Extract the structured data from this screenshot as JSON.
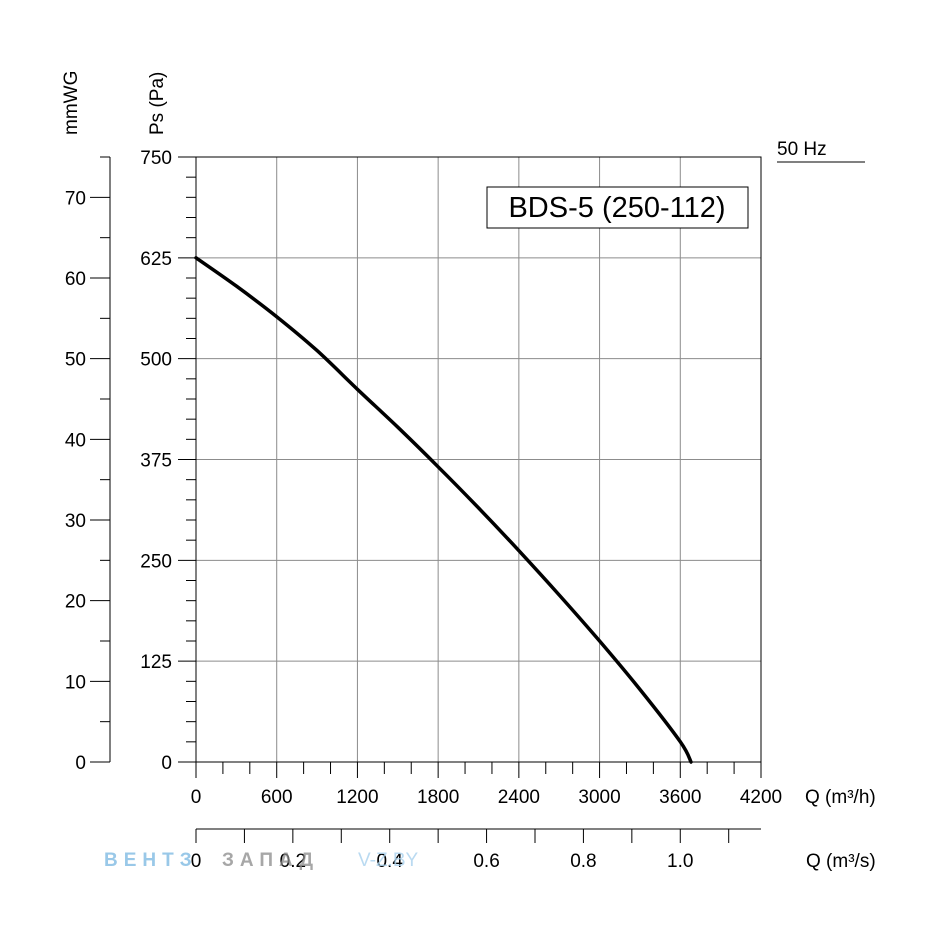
{
  "chart_data": {
    "type": "line",
    "title": "BDS-5 (250-112)",
    "frequency_label": "50 Hz",
    "xlabel": "Q (m³/h)",
    "ylabel": "Ps (Pa)",
    "secondary_ylabel": "mmWG",
    "secondary_xlabel": "Q (m³/s)",
    "xlim": [
      0,
      4200
    ],
    "ylim": [
      0,
      750
    ],
    "secondary_ylim": [
      0,
      75
    ],
    "secondary_xlim": [
      0,
      1.1667
    ],
    "x_ticks": [
      "0",
      "600",
      "1200",
      "1800",
      "2400",
      "3000",
      "3600",
      "4200"
    ],
    "y_ticks": [
      "0",
      "125",
      "250",
      "375",
      "500",
      "625",
      "750"
    ],
    "secondary_y_ticks": [
      "0",
      "10",
      "20",
      "30",
      "40",
      "50",
      "60",
      "70"
    ],
    "secondary_x_ticks": [
      "0",
      "0.2",
      "0.4",
      "0.6",
      "0.8",
      "1.0"
    ],
    "grid": true,
    "series": [
      {
        "x": [
          0,
          300,
          600,
          900,
          1200,
          1500,
          1800,
          2100,
          2400,
          2700,
          3000,
          3300,
          3600,
          3680
        ],
        "values": [
          625,
          590,
          552,
          510,
          462,
          415,
          366,
          315,
          262,
          207,
          150,
          90,
          25,
          0
        ]
      }
    ]
  },
  "watermark": {
    "part1": "ВЕНТЗ",
    "part2": "ЗАПАД",
    "part3": "V-Z.BY"
  }
}
